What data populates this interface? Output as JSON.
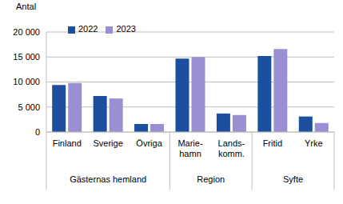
{
  "chart_data": {
    "type": "bar",
    "y_label": "Antal",
    "categories": [
      "Finland",
      "Sverige",
      "Övriga",
      "Marie-\nhamn",
      "Lands-\nkomm.",
      "Fritid",
      "Yrke"
    ],
    "groups": [
      {
        "label": "Gästernas hemland",
        "categories": [
          "Finland",
          "Sverige",
          "Övriga"
        ]
      },
      {
        "label": "Region",
        "categories": [
          "Marie-\nhamn",
          "Lands-\nkomm."
        ]
      },
      {
        "label": "Syfte",
        "categories": [
          "Fritid",
          "Yrke"
        ]
      }
    ],
    "series": [
      {
        "name": "2022",
        "color": "#1c4f9f",
        "values": [
          9400,
          7200,
          1600,
          14700,
          3700,
          15200,
          3100
        ]
      },
      {
        "name": "2023",
        "color": "#9b8fd4",
        "values": [
          9800,
          6700,
          1600,
          15000,
          3400,
          16600,
          1800
        ]
      }
    ],
    "ylim": [
      0,
      20000
    ],
    "yticks": [
      0,
      {
        "value": 5000,
        "label": "5 000"
      },
      {
        "value": 10000,
        "label": "10 000"
      },
      {
        "value": 15000,
        "label": "15 000"
      },
      {
        "value": 20000,
        "label": "20 000"
      }
    ],
    "grid": true,
    "legend": "upper left"
  }
}
